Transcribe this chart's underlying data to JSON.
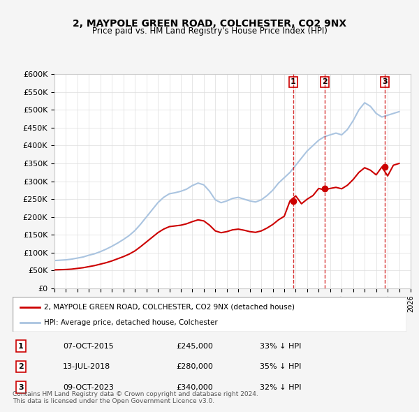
{
  "title": "2, MAYPOLE GREEN ROAD, COLCHESTER, CO2 9NX",
  "subtitle": "Price paid vs. HM Land Registry's House Price Index (HPI)",
  "ylabel_ticks": [
    "£0",
    "£50K",
    "£100K",
    "£150K",
    "£200K",
    "£250K",
    "£300K",
    "£350K",
    "£400K",
    "£450K",
    "£500K",
    "£550K",
    "£600K"
  ],
  "ytick_values": [
    0,
    50000,
    100000,
    150000,
    200000,
    250000,
    300000,
    350000,
    400000,
    450000,
    500000,
    550000,
    600000
  ],
  "xlim": [
    1995,
    2026
  ],
  "ylim": [
    0,
    600000
  ],
  "hpi_color": "#aac4e0",
  "price_color": "#cc0000",
  "sale_marker_color": "#cc0000",
  "vline_color": "#cc0000",
  "background_color": "#f5f5f5",
  "plot_bg_color": "#ffffff",
  "legend_label_red": "2, MAYPOLE GREEN ROAD, COLCHESTER, CO2 9NX (detached house)",
  "legend_label_blue": "HPI: Average price, detached house, Colchester",
  "sales": [
    {
      "label": "1",
      "date": "07-OCT-2015",
      "price": 245000,
      "x": 2015.77,
      "pct": "33%",
      "dir": "↓"
    },
    {
      "label": "2",
      "date": "13-JUL-2018",
      "price": 280000,
      "x": 2018.53,
      "pct": "35%",
      "dir": "↓"
    },
    {
      "label": "3",
      "date": "09-OCT-2023",
      "price": 340000,
      "x": 2023.77,
      "pct": "32%",
      "dir": "↓"
    }
  ],
  "footer": "Contains HM Land Registry data © Crown copyright and database right 2024.\nThis data is licensed under the Open Government Licence v3.0.",
  "hpi_data": {
    "x": [
      1995,
      1995.5,
      1996,
      1996.5,
      1997,
      1997.5,
      1998,
      1998.5,
      1999,
      1999.5,
      2000,
      2000.5,
      2001,
      2001.5,
      2002,
      2002.5,
      2003,
      2003.5,
      2004,
      2004.5,
      2005,
      2005.5,
      2006,
      2006.5,
      2007,
      2007.5,
      2008,
      2008.5,
      2009,
      2009.5,
      2010,
      2010.5,
      2011,
      2011.5,
      2012,
      2012.5,
      2013,
      2013.5,
      2014,
      2014.5,
      2015,
      2015.5,
      2016,
      2016.5,
      2017,
      2017.5,
      2018,
      2018.5,
      2019,
      2019.5,
      2020,
      2020.5,
      2021,
      2021.5,
      2022,
      2022.5,
      2023,
      2023.5,
      2024,
      2024.5,
      2025
    ],
    "y": [
      78000,
      79000,
      80000,
      82000,
      85000,
      88000,
      93000,
      97000,
      103000,
      110000,
      118000,
      127000,
      137000,
      148000,
      162000,
      180000,
      200000,
      220000,
      240000,
      255000,
      265000,
      268000,
      272000,
      278000,
      288000,
      295000,
      290000,
      272000,
      248000,
      240000,
      245000,
      252000,
      255000,
      250000,
      245000,
      242000,
      248000,
      260000,
      275000,
      295000,
      310000,
      325000,
      345000,
      365000,
      385000,
      400000,
      415000,
      425000,
      430000,
      435000,
      430000,
      445000,
      470000,
      500000,
      520000,
      510000,
      490000,
      480000,
      485000,
      490000,
      495000
    ]
  },
  "price_index_data": {
    "x": [
      1995,
      1995.5,
      1996,
      1996.5,
      1997,
      1997.5,
      1998,
      1998.5,
      1999,
      1999.5,
      2000,
      2000.5,
      2001,
      2001.5,
      2002,
      2002.5,
      2003,
      2003.5,
      2004,
      2004.5,
      2005,
      2005.5,
      2006,
      2006.5,
      2007,
      2007.5,
      2008,
      2008.5,
      2009,
      2009.5,
      2010,
      2010.5,
      2011,
      2011.5,
      2012,
      2012.5,
      2013,
      2013.5,
      2014,
      2014.5,
      2015,
      2015.5,
      2016,
      2016.5,
      2017,
      2017.5,
      2018,
      2018.5,
      2019,
      2019.5,
      2020,
      2020.5,
      2021,
      2021.5,
      2022,
      2022.5,
      2023,
      2023.5,
      2024,
      2024.5,
      2025
    ],
    "y": [
      52000,
      52500,
      53000,
      54000,
      56000,
      58000,
      61000,
      64000,
      68000,
      72000,
      77000,
      83000,
      89000,
      96000,
      105000,
      117000,
      130000,
      143000,
      156000,
      166000,
      173000,
      175000,
      177000,
      181000,
      187000,
      192000,
      189000,
      177000,
      161000,
      156000,
      159000,
      164000,
      166000,
      163000,
      159000,
      157000,
      161000,
      169000,
      179000,
      192000,
      202000,
      245000,
      259000,
      237000,
      250000,
      260000,
      280000,
      276000,
      280000,
      283000,
      279000,
      289000,
      305000,
      325000,
      338000,
      331000,
      318000,
      340000,
      315000,
      345000,
      350000
    ]
  }
}
